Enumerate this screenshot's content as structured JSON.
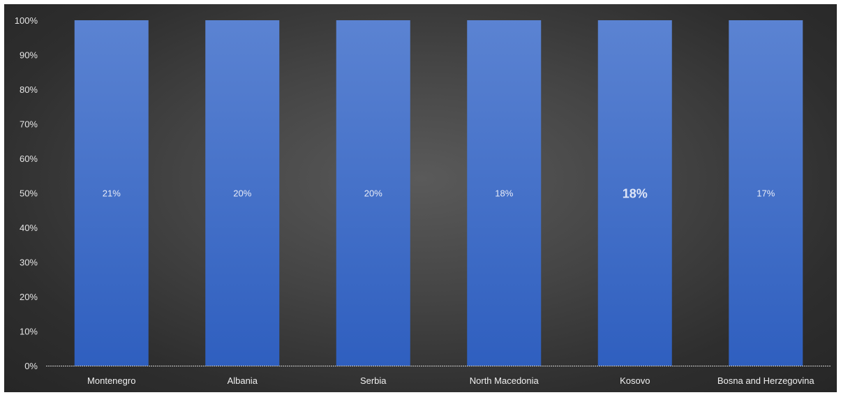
{
  "chart_data": {
    "type": "bar",
    "stacked": true,
    "percent_stacked": true,
    "categories": [
      "Montenegro",
      "Albania",
      "Serbia",
      "North Macedonia",
      "Kosovo",
      "Bosna and Herzegovina"
    ],
    "series": [
      {
        "values": [
          100,
          100,
          100,
          100,
          100,
          100
        ],
        "data_labels": [
          "21%",
          "20%",
          "20%",
          "18%",
          "18%",
          "17%"
        ],
        "color": "#4a72c9"
      }
    ],
    "y_ticks": [
      "0%",
      "10%",
      "20%",
      "30%",
      "40%",
      "50%",
      "60%",
      "70%",
      "80%",
      "90%",
      "100%"
    ],
    "ylim": [
      0,
      100
    ],
    "grid": false,
    "legend": "none",
    "title": "",
    "xlabel": "",
    "ylabel": "",
    "colors": {
      "bar_top": "#5b83d2",
      "bar_bottom": "#2f5fbf",
      "axis": "#cfcfcf"
    }
  }
}
